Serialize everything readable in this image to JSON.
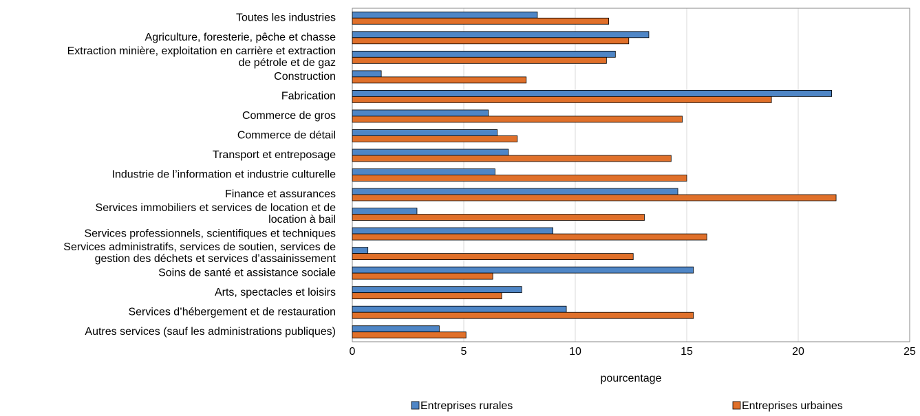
{
  "chart_data": {
    "type": "barh",
    "xlabel": "pourcentage",
    "categories": [
      "Toutes les industries",
      "Agriculture, foresterie, pêche et chasse",
      "Extraction minière, exploitation en carrière et extraction\nde pétrole et de gaz",
      "Construction",
      "Fabrication",
      "Commerce de gros",
      "Commerce de détail",
      "Transport et entreposage",
      "Industrie de l’information et industrie culturelle",
      "Finance et assurances",
      "Services immobiliers et services de location et de\nlocation à bail",
      "Services professionnels, scientifiques et techniques",
      "Services administratifs, services de soutien, services de\ngestion des déchets et services d’assainissement",
      "Soins de santé et assistance sociale",
      "Arts, spectacles et loisirs",
      "Services d’hébergement et de restauration",
      "Autres services (sauf les administrations publiques)"
    ],
    "series": [
      {
        "name": "Entreprises rurales",
        "color": "#4f86c6",
        "values": [
          8.3,
          13.3,
          11.8,
          1.3,
          21.5,
          6.1,
          6.5,
          7.0,
          6.4,
          14.6,
          2.9,
          9.0,
          0.7,
          15.3,
          7.6,
          9.6,
          3.9
        ]
      },
      {
        "name": "Entreprises urbaines",
        "color": "#e0702a",
        "values": [
          11.5,
          12.4,
          11.4,
          7.8,
          18.8,
          14.8,
          7.4,
          14.3,
          15.0,
          21.7,
          13.1,
          15.9,
          12.6,
          6.3,
          6.7,
          15.3,
          5.1
        ]
      }
    ],
    "xlim": [
      0,
      25
    ],
    "xticks": [
      0,
      5,
      10,
      15,
      20,
      25
    ],
    "grid": true
  }
}
